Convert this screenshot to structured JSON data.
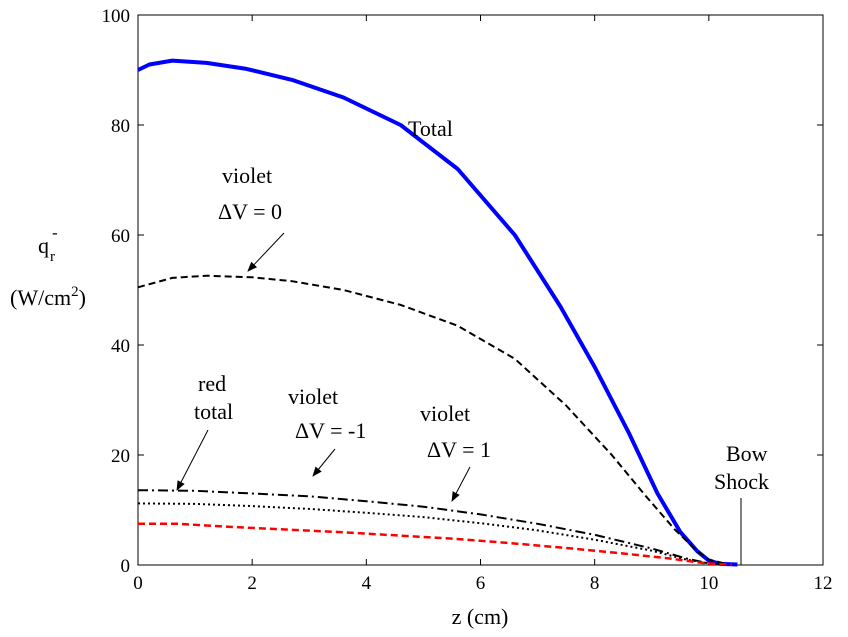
{
  "chart_data": {
    "type": "line",
    "xlabel": "z (cm)",
    "ylabel_main": "q",
    "ylabel_sub": "r",
    "ylabel_sup": "-",
    "ylabel_unit_pre": "(W/cm",
    "ylabel_unit_sup": "2",
    "ylabel_unit_post": ")",
    "xlim": [
      0,
      12
    ],
    "ylim": [
      0,
      100
    ],
    "xticks": [
      0,
      2,
      4,
      6,
      8,
      10,
      12
    ],
    "yticks": [
      0,
      20,
      40,
      60,
      80,
      100
    ],
    "grid": false,
    "series": [
      {
        "key": "total",
        "color": "#0000ff",
        "style": "solid",
        "points": [
          [
            0,
            90
          ],
          [
            0.2,
            91
          ],
          [
            0.6,
            91.7
          ],
          [
            1.2,
            91.3
          ],
          [
            1.9,
            90.2
          ],
          [
            2.7,
            88.2
          ],
          [
            3.6,
            85
          ],
          [
            4.6,
            80
          ],
          [
            5.6,
            72
          ],
          [
            6.6,
            60
          ],
          [
            7.4,
            47
          ],
          [
            8.0,
            36
          ],
          [
            8.6,
            24
          ],
          [
            9.1,
            13
          ],
          [
            9.5,
            6
          ],
          [
            9.8,
            2.5
          ],
          [
            10.0,
            0.8
          ],
          [
            10.2,
            0.2
          ],
          [
            10.5,
            0.1
          ]
        ]
      },
      {
        "key": "violet_dv0",
        "color": "#000000",
        "style": "dashed",
        "points": [
          [
            0,
            50.5
          ],
          [
            0.6,
            52.2
          ],
          [
            1.2,
            52.6
          ],
          [
            2,
            52.3
          ],
          [
            2.7,
            51.6
          ],
          [
            3.6,
            50
          ],
          [
            4.6,
            47.3
          ],
          [
            5.6,
            43.5
          ],
          [
            6.6,
            37.5
          ],
          [
            7.5,
            29
          ],
          [
            8.3,
            20
          ],
          [
            8.9,
            12.5
          ],
          [
            9.4,
            6.5
          ],
          [
            9.8,
            2.5
          ],
          [
            10.0,
            1
          ],
          [
            10.3,
            0.2
          ]
        ]
      },
      {
        "key": "violet_dv1",
        "color": "#000000",
        "style": "dashdot",
        "points": [
          [
            0,
            13.6
          ],
          [
            1,
            13.5
          ],
          [
            2,
            13
          ],
          [
            3,
            12.5
          ],
          [
            4,
            11.6
          ],
          [
            5,
            10.6
          ],
          [
            6,
            9.2
          ],
          [
            7,
            7.5
          ],
          [
            8,
            5.5
          ],
          [
            9,
            3
          ],
          [
            9.6,
            1.2
          ],
          [
            10,
            0.3
          ],
          [
            10.3,
            0.1
          ]
        ]
      },
      {
        "key": "violet_dvm1",
        "color": "#000000",
        "style": "dotted",
        "points": [
          [
            0,
            11.2
          ],
          [
            1,
            11.1
          ],
          [
            2,
            10.7
          ],
          [
            3,
            10.2
          ],
          [
            4,
            9.5
          ],
          [
            5,
            8.7
          ],
          [
            6,
            7.6
          ],
          [
            7,
            6.3
          ],
          [
            8,
            4.6
          ],
          [
            9,
            2.6
          ],
          [
            9.6,
            1
          ],
          [
            10,
            0.3
          ],
          [
            10.3,
            0.1
          ]
        ]
      },
      {
        "key": "red_total",
        "color": "#ff0000",
        "style": "dashed",
        "points": [
          [
            0,
            7.5
          ],
          [
            0.7,
            7.5
          ],
          [
            1.5,
            7
          ],
          [
            2.5,
            6.5
          ],
          [
            3.5,
            6
          ],
          [
            4.5,
            5.4
          ],
          [
            5.5,
            4.8
          ],
          [
            6.5,
            4
          ],
          [
            7.5,
            3.1
          ],
          [
            8.5,
            2.1
          ],
          [
            9.3,
            1.2
          ],
          [
            9.8,
            0.5
          ],
          [
            10.1,
            0.2
          ],
          [
            10.4,
            0.1
          ]
        ]
      }
    ],
    "annotations": {
      "total": "Total",
      "violet0_l1": "violet",
      "violet0_l2": "ΔV = 0",
      "violetm1_l1": "violet",
      "violetm1_l2": "ΔV = -1",
      "violet1_l1": "violet",
      "violet1_l2": "ΔV = 1",
      "red_l1": "red",
      "red_l2": "total",
      "bow_l1": "Bow",
      "bow_l2": "Shock"
    }
  }
}
